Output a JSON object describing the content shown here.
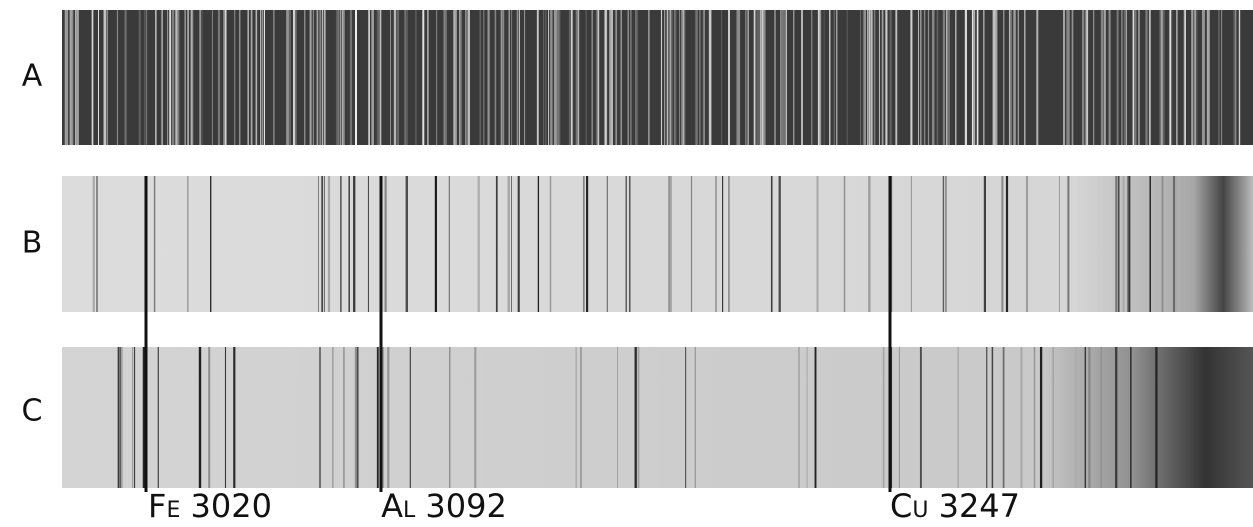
{
  "rows": [
    {
      "label": "A"
    },
    {
      "label": "B"
    },
    {
      "label": "C"
    }
  ],
  "markers": [
    {
      "label": "Fe 3020"
    },
    {
      "label": "Al 3092"
    },
    {
      "label": "Cu 3247"
    }
  ]
}
